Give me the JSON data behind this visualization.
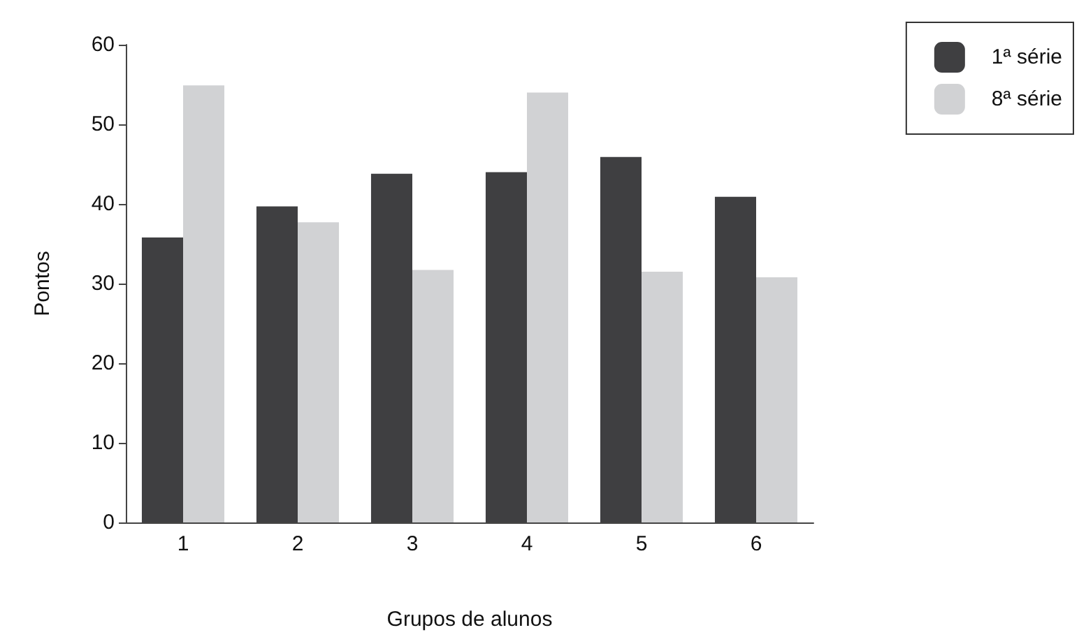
{
  "chart_data": {
    "type": "bar",
    "xlabel": "Grupos de alunos",
    "ylabel": "Pontos",
    "categories": [
      "1",
      "2",
      "3",
      "4",
      "5",
      "6"
    ],
    "series": [
      {
        "name": "1ª série",
        "color": "#3f3f41",
        "values": [
          35.8,
          39.7,
          43.8,
          44.0,
          45.9,
          40.9
        ]
      },
      {
        "name": "8ª série",
        "color": "#d1d2d4",
        "values": [
          54.9,
          37.7,
          31.7,
          54.0,
          31.5,
          30.8
        ]
      }
    ],
    "ylim": [
      0,
      60
    ],
    "yticks": [
      0,
      10,
      20,
      30,
      40,
      50,
      60
    ],
    "grid": false,
    "legend": "top right"
  }
}
